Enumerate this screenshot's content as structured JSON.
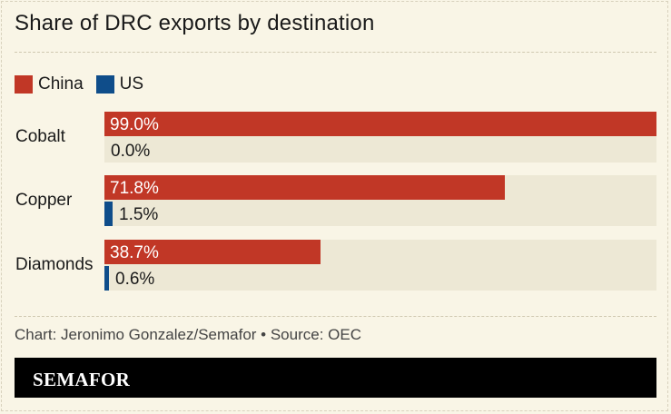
{
  "chart_data": {
    "type": "bar",
    "title": "Share of DRC exports by destination",
    "categories": [
      "Cobalt",
      "Copper",
      "Diamonds"
    ],
    "series": [
      {
        "name": "China",
        "values": [
          99.0,
          71.8,
          38.7
        ],
        "labels": [
          "99.0%",
          "71.8%",
          "38.7%"
        ],
        "color": "#c13726"
      },
      {
        "name": "US",
        "values": [
          0.0,
          1.5,
          0.6
        ],
        "labels": [
          "0.0%",
          "1.5%",
          "0.6%"
        ],
        "color": "#0f4d8a"
      }
    ],
    "xlim": [
      0,
      99
    ],
    "grid": false,
    "legend_position": "top-left"
  },
  "credit": "Chart: Jeronimo Gonzalez/Semafor • Source: OEC",
  "brand": "SEMAFOR",
  "colors": {
    "background": "#f9f5e6",
    "track": "#ede8d5",
    "footer": "#000000"
  }
}
